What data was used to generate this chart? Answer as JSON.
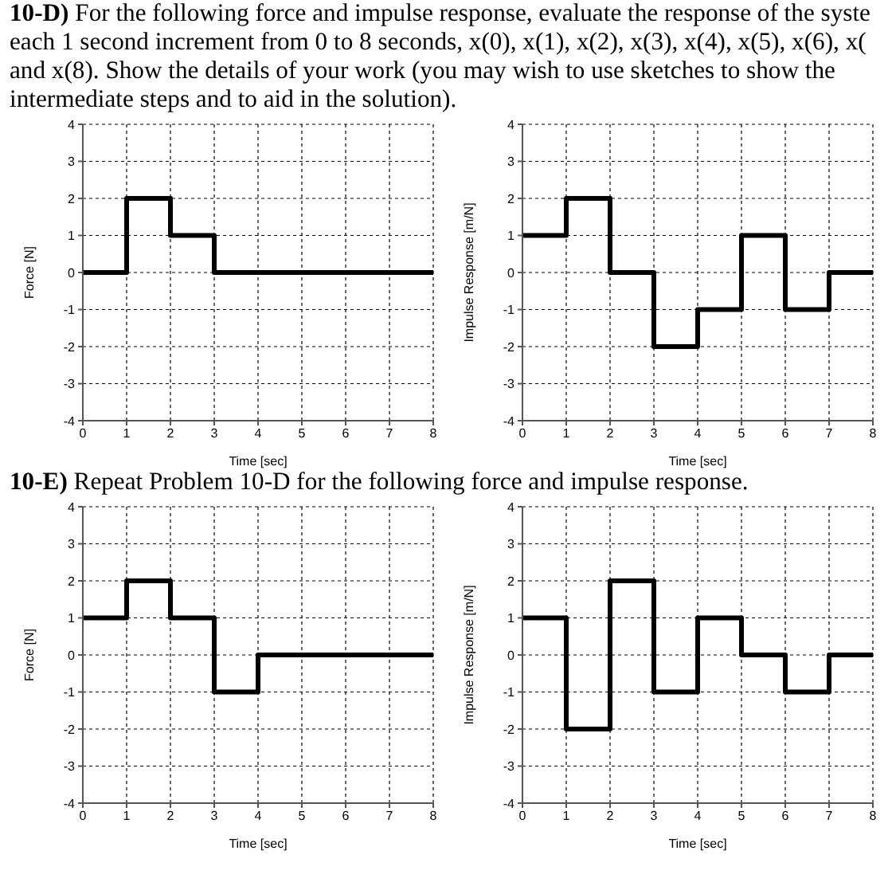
{
  "chart_data": [
    {
      "type": "step",
      "title": "10-D) For the following force and impulse response, evaluate the response of the syste\neach 1 second increment from 0 to 8 seconds, x(0), x(1), x(2), x(3), x(4), x(5), x(6), x(\nand x(8). Show the details of your work (you may wish to use sketches to show the\nintermediate steps and to aid in the solution).",
      "xlabel": "Time [sec]",
      "ylabel": "Force [N]",
      "x": [
        0,
        1,
        2,
        3,
        4,
        5,
        6,
        7,
        8
      ],
      "values": [
        0,
        2,
        1,
        0,
        0,
        0,
        0,
        0,
        0
      ],
      "color": "#000000",
      "xlim": [
        0,
        8
      ],
      "ylim": [
        -4,
        4
      ],
      "xticks": [
        0,
        1,
        2,
        3,
        4,
        5,
        6,
        7,
        8
      ],
      "yticks": [
        -4,
        -3,
        -2,
        -1,
        0,
        1,
        2,
        3,
        4
      ],
      "grid": true,
      "line_style": "solid"
    },
    {
      "type": "step",
      "xlabel": "Time [sec]",
      "ylabel": "Impulse Response [m/N]",
      "x": [
        0,
        1,
        2,
        3,
        4,
        5,
        6,
        7,
        8
      ],
      "values": [
        1,
        2,
        0,
        -2,
        -1,
        1,
        -1,
        0,
        0
      ],
      "color": "#000000",
      "xlim": [
        0,
        8
      ],
      "ylim": [
        -4,
        4
      ],
      "xticks": [
        0,
        1,
        2,
        3,
        4,
        5,
        6,
        7,
        8
      ],
      "yticks": [
        -4,
        -3,
        -2,
        -1,
        0,
        1,
        2,
        3,
        4
      ],
      "grid": true,
      "line_style": "solid"
    },
    {
      "type": "step",
      "title": "10-E) Repeat Problem 10-D for the following force and impulse response.",
      "xlabel": "Time [sec]",
      "ylabel": "Force [N]",
      "x": [
        0,
        1,
        2,
        3,
        4,
        5,
        6,
        7,
        8
      ],
      "values": [
        1,
        2,
        1,
        -1,
        0,
        0,
        0,
        0,
        0
      ],
      "color": "#000000",
      "xlim": [
        0,
        8
      ],
      "ylim": [
        -4,
        4
      ],
      "xticks": [
        0,
        1,
        2,
        3,
        4,
        5,
        6,
        7,
        8
      ],
      "yticks": [
        -4,
        -3,
        -2,
        -1,
        0,
        1,
        2,
        3,
        4
      ],
      "grid": true,
      "line_style": "solid"
    },
    {
      "type": "step",
      "xlabel": "Time [sec]",
      "ylabel": "Impulse Response [m/N]",
      "x": [
        0,
        1,
        2,
        3,
        4,
        5,
        6,
        7,
        8
      ],
      "values": [
        1,
        -2,
        2,
        -1,
        1,
        0,
        -1,
        0,
        0
      ],
      "color": "#000000",
      "xlim": [
        0,
        8
      ],
      "ylim": [
        -4,
        4
      ],
      "xticks": [
        0,
        1,
        2,
        3,
        4,
        5,
        6,
        7,
        8
      ],
      "yticks": [
        -4,
        -3,
        -2,
        -1,
        0,
        1,
        2,
        3,
        4
      ],
      "grid": true,
      "line_style": "solid"
    }
  ]
}
